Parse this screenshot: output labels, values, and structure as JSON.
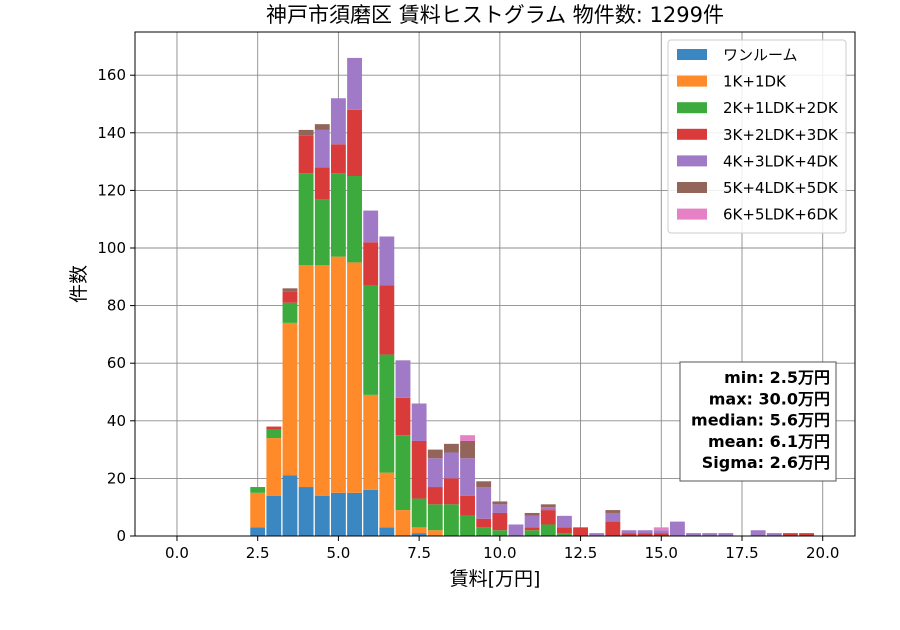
{
  "chart_data": {
    "type": "bar",
    "stacked": true,
    "title": "神戸市須磨区 賃料ヒストグラム 物件数: 1299件",
    "xlabel": "賃料[万円]",
    "ylabel": "件数",
    "xlim": [
      -1.3,
      21.0
    ],
    "ylim": [
      0,
      175
    ],
    "xticks": [
      "0.0",
      "2.5",
      "5.0",
      "7.5",
      "10.0",
      "12.5",
      "15.0",
      "17.5",
      "20.0"
    ],
    "yticks": [
      "0",
      "20",
      "40",
      "60",
      "80",
      "100",
      "120",
      "140",
      "160"
    ],
    "grid": true,
    "legend_position": "top-right",
    "bin_width": 0.5,
    "x": [
      2.5,
      3.0,
      3.5,
      4.0,
      4.5,
      5.0,
      5.5,
      6.0,
      6.5,
      7.0,
      7.5,
      8.0,
      8.5,
      9.0,
      9.5,
      10.0,
      10.5,
      11.0,
      11.5,
      12.0,
      12.5,
      13.0,
      13.5,
      14.0,
      14.5,
      15.0,
      15.5,
      16.0,
      16.5,
      17.0,
      17.5,
      18.0,
      18.5,
      19.0,
      19.5
    ],
    "series": [
      {
        "name": "ワンルーム",
        "color": "#3a87c1",
        "values": [
          3,
          14,
          21,
          17,
          14,
          15,
          15,
          16,
          3,
          0,
          1,
          0,
          0,
          0,
          0,
          0,
          0,
          0,
          0,
          0,
          0,
          0,
          0,
          0,
          0,
          0,
          0,
          0,
          0,
          0,
          0,
          0,
          0,
          0,
          0
        ]
      },
      {
        "name": "1K+1DK",
        "color": "#ff8a2a",
        "values": [
          12,
          20,
          53,
          77,
          80,
          82,
          80,
          33,
          19,
          9,
          2,
          2,
          0,
          0,
          0,
          0,
          0,
          0,
          0,
          0,
          0,
          0,
          0,
          0,
          0,
          0,
          0,
          0,
          0,
          0,
          0,
          0,
          0,
          0,
          0
        ]
      },
      {
        "name": "2K+1LDK+2DK",
        "color": "#3caa3c",
        "values": [
          2,
          3,
          7,
          32,
          23,
          29,
          30,
          38,
          41,
          26,
          10,
          9,
          11,
          7,
          3,
          2,
          0,
          2,
          4,
          1,
          0,
          0,
          0,
          0,
          0,
          0,
          0,
          0,
          0,
          0,
          0,
          0,
          0,
          0,
          0
        ]
      },
      {
        "name": "3K+2LDK+3DK",
        "color": "#d93b3b",
        "values": [
          0,
          1,
          4,
          13,
          11,
          10,
          23,
          15,
          24,
          13,
          20,
          6,
          9,
          7,
          3,
          6,
          0,
          1,
          5,
          2,
          3,
          0,
          5,
          1,
          1,
          1,
          0,
          0,
          0,
          0,
          0,
          0,
          0,
          1,
          1
        ]
      },
      {
        "name": "4K+3LDK+4DK",
        "color": "#a07ac6",
        "values": [
          0,
          0,
          0,
          0,
          13,
          16,
          18,
          11,
          17,
          13,
          13,
          10,
          9,
          13,
          11,
          3,
          4,
          4,
          1,
          4,
          0,
          1,
          3,
          1,
          1,
          1,
          5,
          1,
          1,
          1,
          0,
          2,
          1,
          0,
          0
        ]
      },
      {
        "name": "5K+4LDK+5DK",
        "color": "#93655a",
        "values": [
          0,
          0,
          1,
          2,
          2,
          0,
          0,
          0,
          0,
          0,
          0,
          3,
          3,
          6,
          2,
          1,
          0,
          1,
          1,
          0,
          0,
          0,
          1,
          0,
          0,
          0,
          0,
          0,
          0,
          0,
          0,
          0,
          0,
          0,
          0
        ]
      },
      {
        "name": "6K+5LDK+6DK",
        "color": "#e681c6",
        "values": [
          0,
          0,
          0,
          0,
          0,
          0,
          0,
          0,
          0,
          0,
          0,
          0,
          0,
          2,
          0,
          0,
          0,
          0,
          0,
          0,
          0,
          0,
          0,
          0,
          0,
          1,
          0,
          0,
          0,
          0,
          0,
          0,
          0,
          0,
          0
        ]
      }
    ],
    "stats_box": [
      "min: 2.5万円",
      "max: 30.0万円",
      "median: 5.6万円",
      "mean: 6.1万円",
      "Sigma: 2.6万円"
    ]
  }
}
